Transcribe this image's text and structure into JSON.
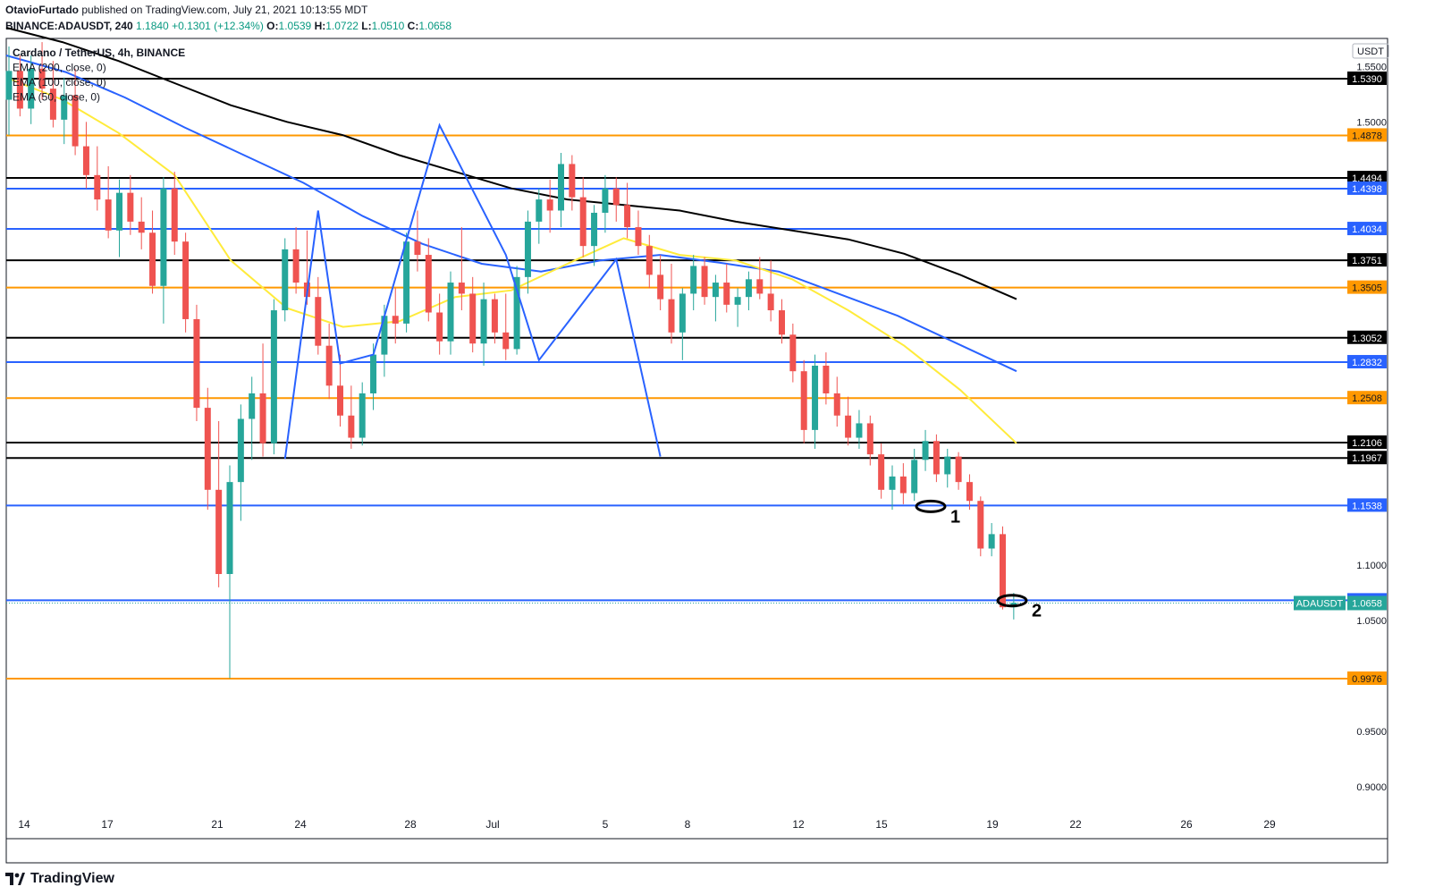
{
  "publish_line": {
    "author": "OtavioFurtado",
    "text": " published on TradingView.com, July 21, 2021 10:13:55 MDT"
  },
  "symbol_line": {
    "symbol": "BINANCE:ADAUSDT, 240",
    "price": "1.1840",
    "change": "+0.1301 (+12.34%)",
    "o_label": "O:",
    "o": "1.0539",
    "h_label": "H:",
    "h": "1.0722",
    "l_label": "L:",
    "l": "1.0510",
    "c_label": "C:",
    "c": "1.0658"
  },
  "legend": [
    "Cardano / TetherUS, 4h, BINANCE",
    "EMA (200, close, 0)",
    "EMA (100, close, 0)",
    "EMA (50, close, 0)"
  ],
  "footer": {
    "brand": "TradingView"
  },
  "colors": {
    "up": "#26a69a",
    "down": "#ef5350",
    "black_line": "#000000",
    "blue_line": "#2962ff",
    "orange_line": "#ff9800",
    "ema200": "#000000",
    "ema100": "#2962ff",
    "ema50": "#ffeb3b"
  },
  "chart_data": {
    "type": "candlestick",
    "currency_label": "USDT",
    "y_axis_ticks": [
      "1.5500",
      "1.5000",
      "1.1000",
      "1.0500",
      "0.9500",
      "0.9000"
    ],
    "y_axis_tick_values": [
      1.55,
      1.5,
      1.1,
      1.05,
      0.95,
      0.9
    ],
    "x_axis_ticks": [
      "14",
      "17",
      "21",
      "24",
      "28",
      "Jul",
      "5",
      "8",
      "12",
      "15",
      "19",
      "22",
      "26",
      "29"
    ],
    "horizontal_levels": [
      {
        "value": 1.539,
        "label": "1.5390",
        "color": "black"
      },
      {
        "value": 1.4878,
        "label": "1.4878",
        "color": "orange"
      },
      {
        "value": 1.4494,
        "label": "1.4494",
        "color": "black"
      },
      {
        "value": 1.4398,
        "label": "1.4398",
        "color": "blue"
      },
      {
        "value": 1.4034,
        "label": "1.4034",
        "color": "blue"
      },
      {
        "value": 1.3751,
        "label": "1.3751",
        "color": "black"
      },
      {
        "value": 1.3505,
        "label": "1.3505",
        "color": "orange"
      },
      {
        "value": 1.3052,
        "label": "1.3052",
        "color": "black"
      },
      {
        "value": 1.2832,
        "label": "1.2832",
        "color": "blue"
      },
      {
        "value": 1.2508,
        "label": "1.2508",
        "color": "orange"
      },
      {
        "value": 1.2106,
        "label": "1.2106",
        "color": "black"
      },
      {
        "value": 1.1967,
        "label": "1.1967",
        "color": "black"
      },
      {
        "value": 1.1538,
        "label": "1.1538",
        "color": "blue"
      },
      {
        "value": 1.0683,
        "label": "1.0683",
        "color": "blue"
      },
      {
        "value": 0.9976,
        "label": "0.9976",
        "color": "orange"
      }
    ],
    "last_price": {
      "value": 1.0658,
      "label": "1.0658",
      "symbol_tag": "ADAUSDT"
    },
    "annotations": [
      {
        "text": "1",
        "date": "Jul 16",
        "price": 1.153
      },
      {
        "text": "2",
        "date": "Jul 20",
        "price": 1.068
      }
    ],
    "candles": [
      {
        "o": 1.52,
        "h": 1.568,
        "l": 1.488,
        "c": 1.546
      },
      {
        "o": 1.546,
        "h": 1.56,
        "l": 1.505,
        "c": 1.512
      },
      {
        "o": 1.512,
        "h": 1.56,
        "l": 1.498,
        "c": 1.548
      },
      {
        "o": 1.548,
        "h": 1.572,
        "l": 1.52,
        "c": 1.53
      },
      {
        "o": 1.53,
        "h": 1.555,
        "l": 1.495,
        "c": 1.502
      },
      {
        "o": 1.502,
        "h": 1.54,
        "l": 1.48,
        "c": 1.524
      },
      {
        "o": 1.524,
        "h": 1.548,
        "l": 1.47,
        "c": 1.478
      },
      {
        "o": 1.478,
        "h": 1.5,
        "l": 1.44,
        "c": 1.452
      },
      {
        "o": 1.452,
        "h": 1.478,
        "l": 1.42,
        "c": 1.43
      },
      {
        "o": 1.43,
        "h": 1.46,
        "l": 1.395,
        "c": 1.402
      },
      {
        "o": 1.402,
        "h": 1.448,
        "l": 1.378,
        "c": 1.436
      },
      {
        "o": 1.436,
        "h": 1.452,
        "l": 1.398,
        "c": 1.41
      },
      {
        "o": 1.41,
        "h": 1.432,
        "l": 1.385,
        "c": 1.4
      },
      {
        "o": 1.4,
        "h": 1.42,
        "l": 1.345,
        "c": 1.352
      },
      {
        "o": 1.352,
        "h": 1.45,
        "l": 1.318,
        "c": 1.44
      },
      {
        "o": 1.44,
        "h": 1.455,
        "l": 1.38,
        "c": 1.392
      },
      {
        "o": 1.392,
        "h": 1.4,
        "l": 1.31,
        "c": 1.322
      },
      {
        "o": 1.322,
        "h": 1.335,
        "l": 1.23,
        "c": 1.242
      },
      {
        "o": 1.242,
        "h": 1.26,
        "l": 1.15,
        "c": 1.168
      },
      {
        "o": 1.168,
        "h": 1.23,
        "l": 1.08,
        "c": 1.092
      },
      {
        "o": 1.092,
        "h": 1.19,
        "l": 0.998,
        "c": 1.175
      },
      {
        "o": 1.175,
        "h": 1.245,
        "l": 1.14,
        "c": 1.232
      },
      {
        "o": 1.232,
        "h": 1.27,
        "l": 1.195,
        "c": 1.255
      },
      {
        "o": 1.255,
        "h": 1.3,
        "l": 1.198,
        "c": 1.21
      },
      {
        "o": 1.21,
        "h": 1.34,
        "l": 1.2,
        "c": 1.33
      },
      {
        "o": 1.33,
        "h": 1.395,
        "l": 1.32,
        "c": 1.385
      },
      {
        "o": 1.385,
        "h": 1.405,
        "l": 1.345,
        "c": 1.355
      },
      {
        "o": 1.355,
        "h": 1.402,
        "l": 1.335,
        "c": 1.342
      },
      {
        "o": 1.342,
        "h": 1.36,
        "l": 1.29,
        "c": 1.298
      },
      {
        "o": 1.298,
        "h": 1.318,
        "l": 1.25,
        "c": 1.262
      },
      {
        "o": 1.262,
        "h": 1.29,
        "l": 1.225,
        "c": 1.235
      },
      {
        "o": 1.235,
        "h": 1.262,
        "l": 1.205,
        "c": 1.215
      },
      {
        "o": 1.215,
        "h": 1.265,
        "l": 1.208,
        "c": 1.255
      },
      {
        "o": 1.255,
        "h": 1.3,
        "l": 1.24,
        "c": 1.29
      },
      {
        "o": 1.29,
        "h": 1.335,
        "l": 1.27,
        "c": 1.325
      },
      {
        "o": 1.325,
        "h": 1.35,
        "l": 1.3,
        "c": 1.318
      },
      {
        "o": 1.318,
        "h": 1.4,
        "l": 1.31,
        "c": 1.392
      },
      {
        "o": 1.392,
        "h": 1.42,
        "l": 1.365,
        "c": 1.38
      },
      {
        "o": 1.38,
        "h": 1.395,
        "l": 1.32,
        "c": 1.328
      },
      {
        "o": 1.328,
        "h": 1.345,
        "l": 1.29,
        "c": 1.302
      },
      {
        "o": 1.302,
        "h": 1.365,
        "l": 1.29,
        "c": 1.355
      },
      {
        "o": 1.355,
        "h": 1.405,
        "l": 1.33,
        "c": 1.345
      },
      {
        "o": 1.345,
        "h": 1.36,
        "l": 1.292,
        "c": 1.3
      },
      {
        "o": 1.3,
        "h": 1.355,
        "l": 1.28,
        "c": 1.34
      },
      {
        "o": 1.34,
        "h": 1.345,
        "l": 1.3,
        "c": 1.31
      },
      {
        "o": 1.31,
        "h": 1.345,
        "l": 1.285,
        "c": 1.295
      },
      {
        "o": 1.295,
        "h": 1.37,
        "l": 1.29,
        "c": 1.36
      },
      {
        "o": 1.36,
        "h": 1.42,
        "l": 1.345,
        "c": 1.41
      },
      {
        "o": 1.41,
        "h": 1.44,
        "l": 1.39,
        "c": 1.43
      },
      {
        "o": 1.43,
        "h": 1.448,
        "l": 1.4,
        "c": 1.42
      },
      {
        "o": 1.42,
        "h": 1.472,
        "l": 1.405,
        "c": 1.462
      },
      {
        "o": 1.462,
        "h": 1.47,
        "l": 1.42,
        "c": 1.432
      },
      {
        "o": 1.432,
        "h": 1.45,
        "l": 1.378,
        "c": 1.388
      },
      {
        "o": 1.388,
        "h": 1.425,
        "l": 1.37,
        "c": 1.418
      },
      {
        "o": 1.418,
        "h": 1.452,
        "l": 1.4,
        "c": 1.44
      },
      {
        "o": 1.44,
        "h": 1.45,
        "l": 1.41,
        "c": 1.425
      },
      {
        "o": 1.425,
        "h": 1.445,
        "l": 1.395,
        "c": 1.405
      },
      {
        "o": 1.405,
        "h": 1.42,
        "l": 1.38,
        "c": 1.388
      },
      {
        "o": 1.388,
        "h": 1.398,
        "l": 1.35,
        "c": 1.362
      },
      {
        "o": 1.362,
        "h": 1.38,
        "l": 1.33,
        "c": 1.34
      },
      {
        "o": 1.34,
        "h": 1.372,
        "l": 1.3,
        "c": 1.31
      },
      {
        "o": 1.31,
        "h": 1.35,
        "l": 1.285,
        "c": 1.345
      },
      {
        "o": 1.345,
        "h": 1.38,
        "l": 1.33,
        "c": 1.37
      },
      {
        "o": 1.37,
        "h": 1.378,
        "l": 1.335,
        "c": 1.342
      },
      {
        "o": 1.342,
        "h": 1.362,
        "l": 1.32,
        "c": 1.355
      },
      {
        "o": 1.355,
        "h": 1.372,
        "l": 1.328,
        "c": 1.335
      },
      {
        "o": 1.335,
        "h": 1.35,
        "l": 1.315,
        "c": 1.342
      },
      {
        "o": 1.342,
        "h": 1.365,
        "l": 1.33,
        "c": 1.358
      },
      {
        "o": 1.358,
        "h": 1.378,
        "l": 1.34,
        "c": 1.345
      },
      {
        "o": 1.345,
        "h": 1.375,
        "l": 1.32,
        "c": 1.33
      },
      {
        "o": 1.33,
        "h": 1.34,
        "l": 1.3,
        "c": 1.308
      },
      {
        "o": 1.308,
        "h": 1.318,
        "l": 1.265,
        "c": 1.275
      },
      {
        "o": 1.275,
        "h": 1.285,
        "l": 1.21,
        "c": 1.222
      },
      {
        "o": 1.222,
        "h": 1.29,
        "l": 1.205,
        "c": 1.28
      },
      {
        "o": 1.28,
        "h": 1.292,
        "l": 1.245,
        "c": 1.255
      },
      {
        "o": 1.255,
        "h": 1.27,
        "l": 1.225,
        "c": 1.235
      },
      {
        "o": 1.235,
        "h": 1.252,
        "l": 1.208,
        "c": 1.215
      },
      {
        "o": 1.215,
        "h": 1.24,
        "l": 1.205,
        "c": 1.228
      },
      {
        "o": 1.228,
        "h": 1.235,
        "l": 1.19,
        "c": 1.2
      },
      {
        "o": 1.2,
        "h": 1.21,
        "l": 1.16,
        "c": 1.168
      },
      {
        "o": 1.168,
        "h": 1.19,
        "l": 1.15,
        "c": 1.18
      },
      {
        "o": 1.18,
        "h": 1.192,
        "l": 1.155,
        "c": 1.165
      },
      {
        "o": 1.165,
        "h": 1.205,
        "l": 1.158,
        "c": 1.195
      },
      {
        "o": 1.195,
        "h": 1.222,
        "l": 1.185,
        "c": 1.212
      },
      {
        "o": 1.212,
        "h": 1.218,
        "l": 1.175,
        "c": 1.182
      },
      {
        "o": 1.182,
        "h": 1.205,
        "l": 1.17,
        "c": 1.198
      },
      {
        "o": 1.198,
        "h": 1.202,
        "l": 1.168,
        "c": 1.175
      },
      {
        "o": 1.175,
        "h": 1.182,
        "l": 1.15,
        "c": 1.158
      },
      {
        "o": 1.158,
        "h": 1.162,
        "l": 1.108,
        "c": 1.115
      },
      {
        "o": 1.115,
        "h": 1.138,
        "l": 1.108,
        "c": 1.128
      },
      {
        "o": 1.128,
        "h": 1.135,
        "l": 1.06,
        "c": 1.062
      },
      {
        "o": 1.062,
        "h": 1.075,
        "l": 1.051,
        "c": 1.066
      }
    ],
    "ema200": [
      1.585,
      1.572,
      1.555,
      1.535,
      1.515,
      1.5,
      1.488,
      1.47,
      1.455,
      1.44,
      1.43,
      1.425,
      1.42,
      1.41,
      1.402,
      1.394,
      1.381,
      1.362,
      1.34
    ],
    "ema100": [
      1.56,
      1.545,
      1.522,
      1.495,
      1.47,
      1.445,
      1.415,
      1.39,
      1.372,
      1.365,
      1.375,
      1.38,
      1.373,
      1.365,
      1.345,
      1.325,
      1.3,
      1.275
    ],
    "ema50": [
      1.54,
      1.52,
      1.49,
      1.452,
      1.375,
      1.332,
      1.315,
      1.32,
      1.342,
      1.348,
      1.372,
      1.395,
      1.38,
      1.375,
      1.358,
      1.33,
      1.298,
      1.258,
      1.21
    ],
    "pattern_line": [
      [
        25,
        1.196
      ],
      [
        28,
        1.42
      ],
      [
        30,
        1.282
      ],
      [
        33,
        1.29
      ],
      [
        39,
        1.497
      ],
      [
        45,
        1.38
      ],
      [
        48,
        1.285
      ],
      [
        55,
        1.376
      ],
      [
        59,
        1.198
      ]
    ]
  }
}
